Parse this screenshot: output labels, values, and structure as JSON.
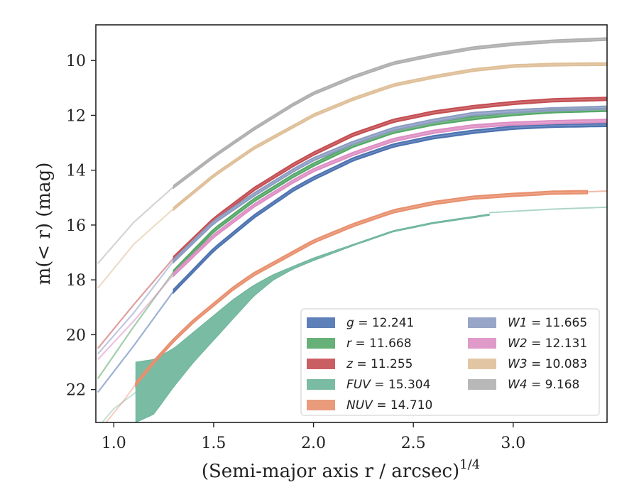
{
  "chart_data": {
    "type": "line",
    "title": "",
    "xlabel": "(Semi-major axis r / arcsec)",
    "xlabel_superscript": "1/4",
    "ylabel": "m(< r) (mag)",
    "xlim": [
      0.91,
      3.47
    ],
    "ylim": [
      23.2,
      8.7
    ],
    "y_inverted": true,
    "x_ticks": [
      1.0,
      1.5,
      2.0,
      2.5,
      3.0
    ],
    "x_tick_labels": [
      "1.0",
      "1.5",
      "2.0",
      "2.5",
      "3.0"
    ],
    "y_ticks": [
      10,
      12,
      14,
      16,
      18,
      20,
      22
    ],
    "y_tick_labels": [
      "10",
      "12",
      "14",
      "16",
      "18",
      "20",
      "22"
    ],
    "grid": false,
    "legend_position": "lower-right",
    "series": [
      {
        "name": "g",
        "label_value": "12.241",
        "color": "#4c72b0",
        "x": [
          0.92,
          1.1,
          1.3,
          1.5,
          1.7,
          1.9,
          2.0,
          2.2,
          2.4,
          2.6,
          2.8,
          3.0,
          3.2,
          3.47
        ],
        "y": [
          22.1,
          20.4,
          18.4,
          16.9,
          15.7,
          14.7,
          14.3,
          13.6,
          13.1,
          12.8,
          12.6,
          12.45,
          12.38,
          12.35
        ],
        "band": 0.05,
        "faint_until": 1.3
      },
      {
        "name": "r",
        "label_value": "11.668",
        "color": "#55a868",
        "x": [
          0.92,
          1.1,
          1.3,
          1.5,
          1.7,
          1.9,
          2.0,
          2.2,
          2.4,
          2.6,
          2.8,
          3.0,
          3.2,
          3.47
        ],
        "y": [
          21.6,
          19.7,
          17.7,
          16.2,
          15.1,
          14.2,
          13.8,
          13.1,
          12.6,
          12.3,
          12.1,
          11.95,
          11.85,
          11.8
        ],
        "band": 0.05,
        "faint_until": 1.3
      },
      {
        "name": "z",
        "label_value": "11.255",
        "color": "#c44e52",
        "x": [
          0.92,
          1.1,
          1.3,
          1.5,
          1.7,
          1.9,
          2.0,
          2.2,
          2.4,
          2.6,
          2.8,
          3.0,
          3.2,
          3.47
        ],
        "y": [
          20.5,
          18.9,
          17.2,
          15.8,
          14.7,
          13.8,
          13.4,
          12.7,
          12.2,
          11.9,
          11.7,
          11.55,
          11.45,
          11.4
        ],
        "band": 0.05,
        "faint_until": 1.3
      },
      {
        "name": "FUV",
        "label_value": "15.304",
        "color": "#6cb49a",
        "x": [
          1.11,
          1.2,
          1.3,
          1.4,
          1.5,
          1.6,
          1.7,
          1.8,
          1.9,
          2.0,
          2.2,
          2.4,
          2.6,
          2.88
        ],
        "y": [
          21.0,
          20.9,
          20.5,
          19.9,
          19.3,
          18.7,
          18.2,
          17.8,
          17.5,
          17.2,
          16.7,
          16.2,
          15.9,
          15.6
        ],
        "lower": [
          23.2,
          22.9,
          21.9,
          21.0,
          20.2,
          19.4,
          18.6,
          18.0,
          17.6,
          17.3,
          16.75,
          16.25,
          15.95,
          15.65
        ],
        "faint_x": [
          0.93,
          1.0,
          1.11
        ],
        "faint_y": [
          23.3,
          22.7,
          22.1
        ],
        "tail_x": [
          2.88,
          3.0,
          3.2,
          3.47
        ],
        "tail_y": [
          15.55,
          15.5,
          15.42,
          15.35
        ]
      },
      {
        "name": "NUV",
        "label_value": "14.710",
        "color": "#e8906e",
        "x": [
          1.11,
          1.2,
          1.3,
          1.4,
          1.5,
          1.6,
          1.7,
          1.8,
          1.9,
          2.0,
          2.2,
          2.4,
          2.6,
          2.8,
          3.0,
          3.2,
          3.37
        ],
        "y": [
          21.8,
          21.0,
          20.2,
          19.5,
          18.9,
          18.3,
          17.8,
          17.4,
          17.0,
          16.6,
          16.0,
          15.5,
          15.2,
          15.0,
          14.9,
          14.82,
          14.8
        ],
        "band": 0.05,
        "faint_x": [
          0.95,
          1.05,
          1.11
        ],
        "faint_y": [
          23.3,
          22.4,
          21.8
        ],
        "tail_x": [
          3.37,
          3.47
        ],
        "tail_y": [
          14.79,
          14.76
        ]
      },
      {
        "name": "W1",
        "label_value": "11.665",
        "color": "#8c9cc2",
        "x": [
          0.92,
          1.1,
          1.3,
          1.5,
          1.7,
          1.9,
          2.0,
          2.2,
          2.4,
          2.6,
          2.8,
          3.0,
          3.2,
          3.47
        ],
        "y": [
          20.7,
          19.2,
          17.3,
          15.9,
          14.9,
          14.0,
          13.6,
          13.0,
          12.5,
          12.2,
          11.95,
          11.85,
          11.78,
          11.72
        ],
        "band": 0.05,
        "faint_until": 1.3
      },
      {
        "name": "W2",
        "label_value": "12.131",
        "color": "#dd8fc4",
        "x": [
          0.92,
          1.1,
          1.3,
          1.5,
          1.7,
          1.9,
          2.0,
          2.2,
          2.4,
          2.6,
          2.8,
          3.0,
          3.2,
          3.47
        ],
        "y": [
          20.9,
          19.5,
          17.8,
          16.4,
          15.3,
          14.4,
          14.0,
          13.4,
          12.9,
          12.6,
          12.4,
          12.3,
          12.25,
          12.2
        ],
        "band": 0.05,
        "faint_until": 1.3
      },
      {
        "name": "W3",
        "label_value": "10.083",
        "color": "#dfc09a",
        "x": [
          0.92,
          1.1,
          1.3,
          1.5,
          1.7,
          1.9,
          2.0,
          2.2,
          2.4,
          2.6,
          2.8,
          3.0,
          3.2,
          3.47
        ],
        "y": [
          18.3,
          16.7,
          15.4,
          14.2,
          13.2,
          12.4,
          12.0,
          11.4,
          10.9,
          10.6,
          10.35,
          10.2,
          10.15,
          10.13
        ],
        "band": 0.04,
        "faint_until": 1.3
      },
      {
        "name": "W4",
        "label_value": "9.168",
        "color": "#b0b0b0",
        "x": [
          0.92,
          1.1,
          1.3,
          1.5,
          1.7,
          1.9,
          2.0,
          2.2,
          2.4,
          2.6,
          2.8,
          3.0,
          3.2,
          3.47
        ],
        "y": [
          17.4,
          15.9,
          14.6,
          13.5,
          12.5,
          11.6,
          11.2,
          10.6,
          10.1,
          9.8,
          9.55,
          9.4,
          9.3,
          9.22
        ],
        "band": 0.04,
        "faint_until": 1.3
      }
    ]
  }
}
